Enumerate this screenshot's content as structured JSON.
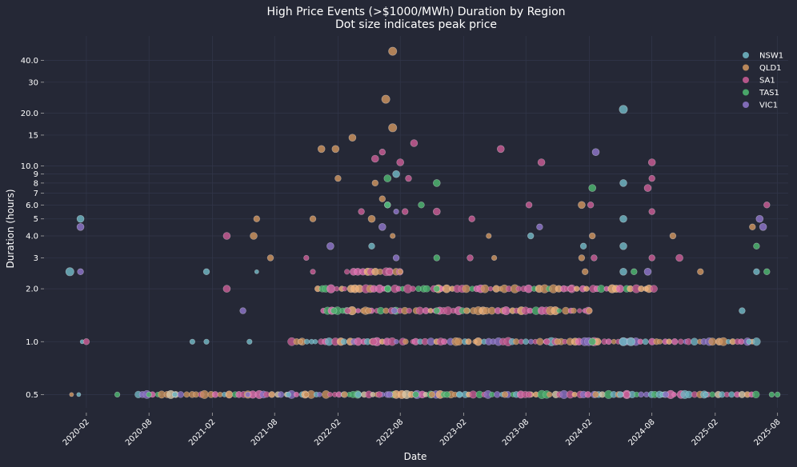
{
  "chart_data": {
    "type": "scatter",
    "title": "High Price Events (>$1000/MWh) Duration by Region",
    "subtitle": "Dot size indicates peak price",
    "xlabel": "Date",
    "ylabel": "Duration (hours)",
    "yscale": "log",
    "ylim": [
      0.42,
      55
    ],
    "xlim": [
      "2019-10-01",
      "2025-09-01"
    ],
    "x_ticks": [
      "2020-02",
      "2020-08",
      "2021-02",
      "2021-08",
      "2022-02",
      "2022-08",
      "2023-02",
      "2023-08",
      "2024-02",
      "2024-08",
      "2025-02",
      "2025-08"
    ],
    "y_ticks": [
      {
        "v": 0.5,
        "label": "0.5"
      },
      {
        "v": 1,
        "label": "1.0"
      },
      {
        "v": 2,
        "label": "2.0"
      },
      {
        "v": 3,
        "label": "3"
      },
      {
        "v": 4,
        "label": "4.0"
      },
      {
        "v": 5,
        "label": "5"
      },
      {
        "v": 6,
        "label": "6.0"
      },
      {
        "v": 7,
        "label": "7"
      },
      {
        "v": 8,
        "label": "8"
      },
      {
        "v": 9,
        "label": "9"
      },
      {
        "v": 10,
        "label": "10.0"
      },
      {
        "v": 15,
        "label": "15"
      },
      {
        "v": 20,
        "label": "20.0"
      },
      {
        "v": 30,
        "label": "30"
      },
      {
        "v": 40,
        "label": "40.0"
      }
    ],
    "grid": true,
    "legend_position": "top-right",
    "series": [
      {
        "name": "NSW1",
        "color": "#6fb3c0",
        "points": [
          {
            "x": "2019-12-15",
            "y": 2.5,
            "s": 8
          },
          {
            "x": "2020-01-15",
            "y": 5,
            "s": 7
          },
          {
            "x": "2020-01-20",
            "y": 1,
            "s": 4
          },
          {
            "x": "2020-12-05",
            "y": 1,
            "s": 5
          },
          {
            "x": "2021-01-15",
            "y": 2.5,
            "s": 6
          },
          {
            "x": "2021-01-15",
            "y": 1,
            "s": 5
          },
          {
            "x": "2021-05-20",
            "y": 1,
            "s": 5
          },
          {
            "x": "2021-06-10",
            "y": 2.5,
            "s": 4
          },
          {
            "x": "2022-05-10",
            "y": 3.5,
            "s": 6
          },
          {
            "x": "2022-06-25",
            "y": 6,
            "s": 6
          },
          {
            "x": "2022-07-20",
            "y": 9,
            "s": 7
          },
          {
            "x": "2023-08-15",
            "y": 4,
            "s": 6
          },
          {
            "x": "2024-01-15",
            "y": 3.5,
            "s": 6
          },
          {
            "x": "2024-05-10",
            "y": 21,
            "s": 8
          },
          {
            "x": "2024-05-10",
            "y": 8,
            "s": 7
          },
          {
            "x": "2024-05-10",
            "y": 5,
            "s": 7
          },
          {
            "x": "2024-05-10",
            "y": 3.5,
            "s": 7
          },
          {
            "x": "2024-05-10",
            "y": 2.5,
            "s": 7
          },
          {
            "x": "2024-05-10",
            "y": 1,
            "s": 8
          },
          {
            "x": "2024-06-01",
            "y": 1,
            "s": 8
          },
          {
            "x": "2025-04-20",
            "y": 1.5,
            "s": 6
          },
          {
            "x": "2025-05-10",
            "y": 1,
            "s": 5
          },
          {
            "x": "2025-06-01",
            "y": 2.5,
            "s": 6
          },
          {
            "x": "2020-01-10",
            "y": 0.5,
            "s": 4
          },
          {
            "x": "2020-10-15",
            "y": 0.5,
            "s": 5
          },
          {
            "x": "2021-09-10",
            "y": 0.5,
            "s": 5
          },
          {
            "x": "2022-04-01",
            "y": 0.5,
            "s": 6
          },
          {
            "x": "2023-01-20",
            "y": 0.5,
            "s": 6
          },
          {
            "x": "2024-05-01",
            "y": 0.5,
            "s": 6
          },
          {
            "x": "2024-09-01",
            "y": 0.5,
            "s": 5
          },
          {
            "x": "2025-01-05",
            "y": 0.5,
            "s": 5
          }
        ]
      },
      {
        "name": "QLD1",
        "color": "#c9915e",
        "points": [
          {
            "x": "2019-12-20",
            "y": 0.5,
            "s": 4
          },
          {
            "x": "2021-06-01",
            "y": 4,
            "s": 7
          },
          {
            "x": "2021-06-10",
            "y": 5,
            "s": 6
          },
          {
            "x": "2021-07-20",
            "y": 3,
            "s": 6
          },
          {
            "x": "2021-10-15",
            "y": 1,
            "s": 5
          },
          {
            "x": "2021-11-20",
            "y": 5,
            "s": 6
          },
          {
            "x": "2021-12-15",
            "y": 12.5,
            "s": 7
          },
          {
            "x": "2022-01-25",
            "y": 12.5,
            "s": 7
          },
          {
            "x": "2022-02-01",
            "y": 8.5,
            "s": 6
          },
          {
            "x": "2022-03-15",
            "y": 14.5,
            "s": 7
          },
          {
            "x": "2022-05-10",
            "y": 5,
            "s": 7
          },
          {
            "x": "2022-05-20",
            "y": 8,
            "s": 6
          },
          {
            "x": "2022-06-10",
            "y": 6.5,
            "s": 6
          },
          {
            "x": "2022-06-20",
            "y": 24,
            "s": 8
          },
          {
            "x": "2022-07-10",
            "y": 45,
            "s": 8
          },
          {
            "x": "2022-07-10",
            "y": 16.5,
            "s": 8
          },
          {
            "x": "2022-07-10",
            "y": 4,
            "s": 5
          },
          {
            "x": "2022-08-01",
            "y": 2.5,
            "s": 5
          },
          {
            "x": "2023-04-15",
            "y": 4,
            "s": 5
          },
          {
            "x": "2023-05-01",
            "y": 3,
            "s": 5
          },
          {
            "x": "2024-01-10",
            "y": 6,
            "s": 7
          },
          {
            "x": "2024-01-10",
            "y": 3,
            "s": 6
          },
          {
            "x": "2024-02-10",
            "y": 4,
            "s": 6
          },
          {
            "x": "2024-01-20",
            "y": 2.5,
            "s": 6
          },
          {
            "x": "2024-10-01",
            "y": 4,
            "s": 6
          },
          {
            "x": "2024-12-20",
            "y": 2.5,
            "s": 6
          },
          {
            "x": "2025-05-20",
            "y": 4.5,
            "s": 6
          },
          {
            "x": "2022-05-01",
            "y": 1.5,
            "s": 6
          },
          {
            "x": "2023-02-10",
            "y": 1.5,
            "s": 6
          },
          {
            "x": "2023-11-01",
            "y": 1,
            "s": 6
          },
          {
            "x": "2024-02-01",
            "y": 1.5,
            "s": 6
          },
          {
            "x": "2021-11-01",
            "y": 0.5,
            "s": 5
          },
          {
            "x": "2022-02-20",
            "y": 0.5,
            "s": 6
          },
          {
            "x": "2022-11-01",
            "y": 0.5,
            "s": 6
          },
          {
            "x": "2023-06-01",
            "y": 0.5,
            "s": 6
          },
          {
            "x": "2024-02-20",
            "y": 0.5,
            "s": 6
          }
        ]
      },
      {
        "name": "SA1",
        "color": "#c45b92",
        "points": [
          {
            "x": "2020-02-01",
            "y": 1,
            "s": 6
          },
          {
            "x": "2021-03-15",
            "y": 4,
            "s": 7
          },
          {
            "x": "2021-03-15",
            "y": 2,
            "s": 7
          },
          {
            "x": "2021-11-01",
            "y": 3,
            "s": 5
          },
          {
            "x": "2021-11-20",
            "y": 2.5,
            "s": 5
          },
          {
            "x": "2022-04-10",
            "y": 5.5,
            "s": 6
          },
          {
            "x": "2022-05-20",
            "y": 11,
            "s": 7
          },
          {
            "x": "2022-06-10",
            "y": 12,
            "s": 6
          },
          {
            "x": "2022-07-01",
            "y": 2.5,
            "s": 6
          },
          {
            "x": "2022-08-01",
            "y": 10.5,
            "s": 7
          },
          {
            "x": "2022-08-15",
            "y": 5.5,
            "s": 6
          },
          {
            "x": "2022-08-25",
            "y": 8.5,
            "s": 6
          },
          {
            "x": "2022-09-10",
            "y": 13.5,
            "s": 7
          },
          {
            "x": "2022-11-15",
            "y": 5.5,
            "s": 7
          },
          {
            "x": "2023-02-25",
            "y": 5,
            "s": 6
          },
          {
            "x": "2023-02-20",
            "y": 3,
            "s": 6
          },
          {
            "x": "2023-05-20",
            "y": 12.5,
            "s": 7
          },
          {
            "x": "2023-08-10",
            "y": 6,
            "s": 6
          },
          {
            "x": "2023-09-15",
            "y": 10.5,
            "s": 7
          },
          {
            "x": "2023-12-10",
            "y": 2,
            "s": 6
          },
          {
            "x": "2024-02-05",
            "y": 6,
            "s": 6
          },
          {
            "x": "2024-02-15",
            "y": 3,
            "s": 6
          },
          {
            "x": "2024-07-20",
            "y": 7.5,
            "s": 7
          },
          {
            "x": "2024-08-01",
            "y": 10.5,
            "s": 7
          },
          {
            "x": "2024-08-01",
            "y": 8.5,
            "s": 6
          },
          {
            "x": "2024-08-01",
            "y": 5.5,
            "s": 6
          },
          {
            "x": "2024-08-01",
            "y": 3,
            "s": 6
          },
          {
            "x": "2024-10-20",
            "y": 3,
            "s": 7
          },
          {
            "x": "2025-07-01",
            "y": 6,
            "s": 6
          },
          {
            "x": "2022-03-01",
            "y": 1.5,
            "s": 6
          },
          {
            "x": "2022-05-15",
            "y": 1,
            "s": 7
          },
          {
            "x": "2023-10-01",
            "y": 1,
            "s": 6
          },
          {
            "x": "2022-06-01",
            "y": 0.5,
            "s": 6
          },
          {
            "x": "2023-08-10",
            "y": 0.5,
            "s": 6
          },
          {
            "x": "2024-05-20",
            "y": 0.5,
            "s": 6
          }
        ]
      },
      {
        "name": "TAS1",
        "color": "#4eb36f",
        "points": [
          {
            "x": "2020-05-01",
            "y": 0.5,
            "s": 5
          },
          {
            "x": "2020-08-01",
            "y": 0.5,
            "s": 5
          },
          {
            "x": "2022-01-20",
            "y": 1.5,
            "s": 6
          },
          {
            "x": "2022-06-25",
            "y": 8.5,
            "s": 7
          },
          {
            "x": "2022-06-25",
            "y": 6,
            "s": 6
          },
          {
            "x": "2022-06-25",
            "y": 2,
            "s": 6
          },
          {
            "x": "2022-10-01",
            "y": 6,
            "s": 6
          },
          {
            "x": "2022-11-15",
            "y": 8,
            "s": 7
          },
          {
            "x": "2022-11-15",
            "y": 3,
            "s": 6
          },
          {
            "x": "2022-11-15",
            "y": 2,
            "s": 6
          },
          {
            "x": "2022-11-15",
            "y": 1.5,
            "s": 6
          },
          {
            "x": "2024-02-10",
            "y": 7.5,
            "s": 7
          },
          {
            "x": "2024-02-10",
            "y": 1,
            "s": 7
          },
          {
            "x": "2024-06-10",
            "y": 2.5,
            "s": 6
          },
          {
            "x": "2025-06-01",
            "y": 3.5,
            "s": 6
          },
          {
            "x": "2025-07-01",
            "y": 2.5,
            "s": 6
          },
          {
            "x": "2022-09-15",
            "y": 0.5,
            "s": 6
          },
          {
            "x": "2022-12-15",
            "y": 0.5,
            "s": 6
          },
          {
            "x": "2025-08-01",
            "y": 0.5,
            "s": 5
          },
          {
            "x": "2025-07-15",
            "y": 0.5,
            "s": 5
          }
        ]
      },
      {
        "name": "VIC1",
        "color": "#8b72c4",
        "points": [
          {
            "x": "2020-01-15",
            "y": 4.5,
            "s": 7
          },
          {
            "x": "2020-01-15",
            "y": 2.5,
            "s": 6
          },
          {
            "x": "2021-05-01",
            "y": 1.5,
            "s": 6
          },
          {
            "x": "2022-01-10",
            "y": 3.5,
            "s": 7
          },
          {
            "x": "2022-06-10",
            "y": 4.5,
            "s": 7
          },
          {
            "x": "2022-07-20",
            "y": 5.5,
            "s": 5
          },
          {
            "x": "2022-07-20",
            "y": 3,
            "s": 6
          },
          {
            "x": "2023-09-10",
            "y": 4.5,
            "s": 6
          },
          {
            "x": "2024-02-20",
            "y": 12,
            "s": 7
          },
          {
            "x": "2024-07-20",
            "y": 2.5,
            "s": 7
          },
          {
            "x": "2025-06-10",
            "y": 5,
            "s": 7
          },
          {
            "x": "2025-06-20",
            "y": 4.5,
            "s": 7
          },
          {
            "x": "2022-07-15",
            "y": 1.5,
            "s": 6
          },
          {
            "x": "2021-05-15",
            "y": 0.5,
            "s": 5
          },
          {
            "x": "2022-07-01",
            "y": 0.5,
            "s": 6
          },
          {
            "x": "2024-09-10",
            "y": 0.5,
            "s": 6
          }
        ]
      }
    ],
    "bulk_rows": [
      {
        "y": 0.5,
        "start": "2020-07-01",
        "end": "2025-06-01",
        "colors": [
          "#6fb3c0",
          "#c9915e",
          "#c45b92",
          "#4eb36f",
          "#8b72c4",
          "#f0b37c",
          "#e070b0",
          "#d8c8a8"
        ]
      },
      {
        "y": 1,
        "start": "2021-09-20",
        "end": "2025-06-01",
        "colors": [
          "#c45b92",
          "#c9915e",
          "#6fb3c0",
          "#e070b0",
          "#8b72c4",
          "#f0b37c"
        ]
      },
      {
        "y": 1.5,
        "start": "2021-12-20",
        "end": "2024-02-01",
        "colors": [
          "#c9915e",
          "#c45b92",
          "#4eb36f",
          "#f0b37c",
          "#e070b0"
        ]
      },
      {
        "y": 2,
        "start": "2021-12-01",
        "end": "2024-08-10",
        "colors": [
          "#c45b92",
          "#c9915e",
          "#e070b0",
          "#f0b37c",
          "#4eb36f"
        ]
      },
      {
        "y": 2.5,
        "start": "2022-03-01",
        "end": "2022-08-01",
        "colors": [
          "#c9915e",
          "#c45b92",
          "#e070b0",
          "#f0b37c"
        ]
      }
    ]
  }
}
